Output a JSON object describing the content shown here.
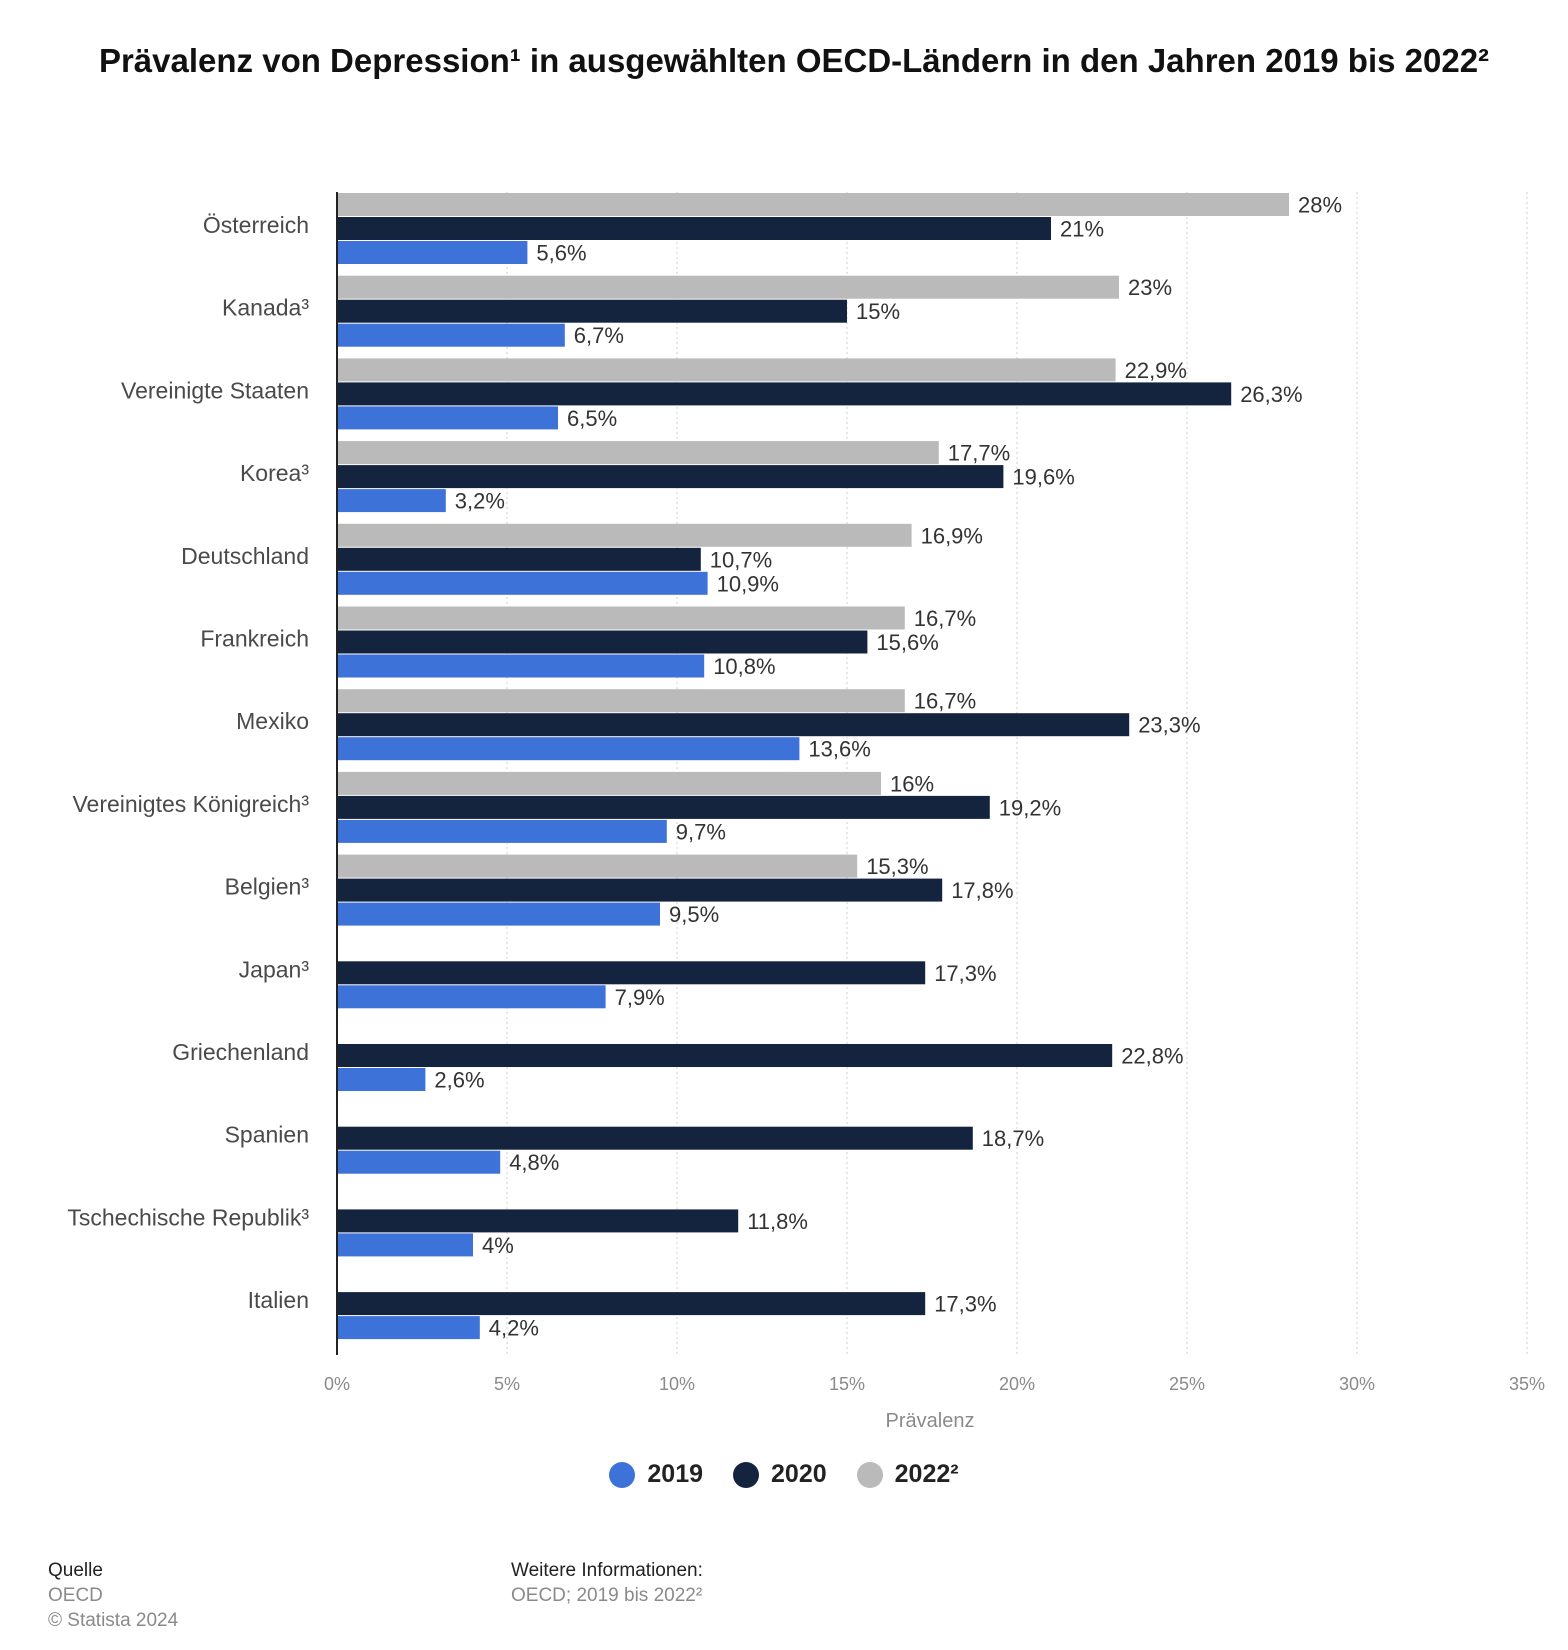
{
  "title": "Prävalenz von Depression¹ in ausgewählten OECD-Ländern in den Jahren 2019 bis 2022²",
  "chart_data": {
    "type": "bar",
    "orientation": "horizontal",
    "xlabel": "Prävalenz",
    "xlim": [
      0,
      35
    ],
    "xticks": [
      0,
      5,
      10,
      15,
      20,
      25,
      30,
      35
    ],
    "tick_labels": [
      "0%",
      "5%",
      "10%",
      "15%",
      "20%",
      "25%",
      "30%",
      "35%"
    ],
    "grid": "vertical dotted",
    "legend_position": "bottom",
    "categories": [
      "Österreich",
      "Kanada³",
      "Vereinigte Staaten",
      "Korea³",
      "Deutschland",
      "Frankreich",
      "Mexiko",
      "Vereinigtes Königreich³",
      "Belgien³",
      "Japan³",
      "Griechenland",
      "Spanien",
      "Tschechische Republik³",
      "Italien"
    ],
    "series": [
      {
        "name": "2022²",
        "color": "#bababa",
        "values": [
          28,
          23,
          22.9,
          17.7,
          16.9,
          16.7,
          16.7,
          16,
          15.3,
          null,
          null,
          null,
          null,
          null
        ],
        "labels": [
          "28%",
          "23%",
          "22,9%",
          "17,7%",
          "16,9%",
          "16,7%",
          "16,7%",
          "16%",
          "15,3%",
          "",
          "",
          "",
          "",
          ""
        ]
      },
      {
        "name": "2020",
        "color": "#15243e",
        "values": [
          21,
          15,
          26.3,
          19.6,
          10.7,
          15.6,
          23.3,
          19.2,
          17.8,
          17.3,
          22.8,
          18.7,
          11.8,
          17.3
        ],
        "labels": [
          "21%",
          "15%",
          "26,3%",
          "19,6%",
          "10,7%",
          "15,6%",
          "23,3%",
          "19,2%",
          "17,8%",
          "17,3%",
          "22,8%",
          "18,7%",
          "11,8%",
          "17,3%"
        ]
      },
      {
        "name": "2019",
        "color": "#3d72d9",
        "values": [
          5.6,
          6.7,
          6.5,
          3.2,
          10.9,
          10.8,
          13.6,
          9.7,
          9.5,
          7.9,
          2.6,
          4.8,
          4,
          4.2
        ],
        "labels": [
          "5,6%",
          "6,7%",
          "6,5%",
          "3,2%",
          "10,9%",
          "10,8%",
          "13,6%",
          "9,7%",
          "9,5%",
          "7,9%",
          "2,6%",
          "4,8%",
          "4%",
          "4,2%"
        ]
      }
    ]
  },
  "legend": [
    {
      "label": "2019",
      "color": "#3d72d9"
    },
    {
      "label": "2020",
      "color": "#15243e"
    },
    {
      "label": "2022²",
      "color": "#bababa"
    }
  ],
  "footer": {
    "source_heading": "Quelle",
    "source": "OECD",
    "copyright": "© Statista 2024",
    "info_heading": "Weitere Informationen:",
    "info": "OECD; 2019 bis 2022²"
  }
}
